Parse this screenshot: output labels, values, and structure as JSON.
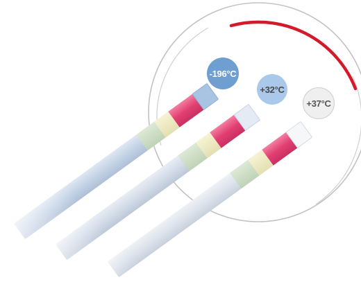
{
  "labels": {
    "t1": "-196°C",
    "t2": "+32°C",
    "t3": "+37°C"
  },
  "colors": {
    "ring": "#b9b9b9",
    "ring_accent": "#d41a2a",
    "badge_cold": "#6f9fd0",
    "badge_mid": "#a9c8ea",
    "badge_warm": "#efefef",
    "strip_window_cold": "#a9c4e2",
    "strip_pink": "#e44e7e",
    "strip_yellow": "#eeeac0",
    "strip_green": "#c9dcc2"
  },
  "icons": [
    "temperature-ring",
    "indicator-strip"
  ]
}
